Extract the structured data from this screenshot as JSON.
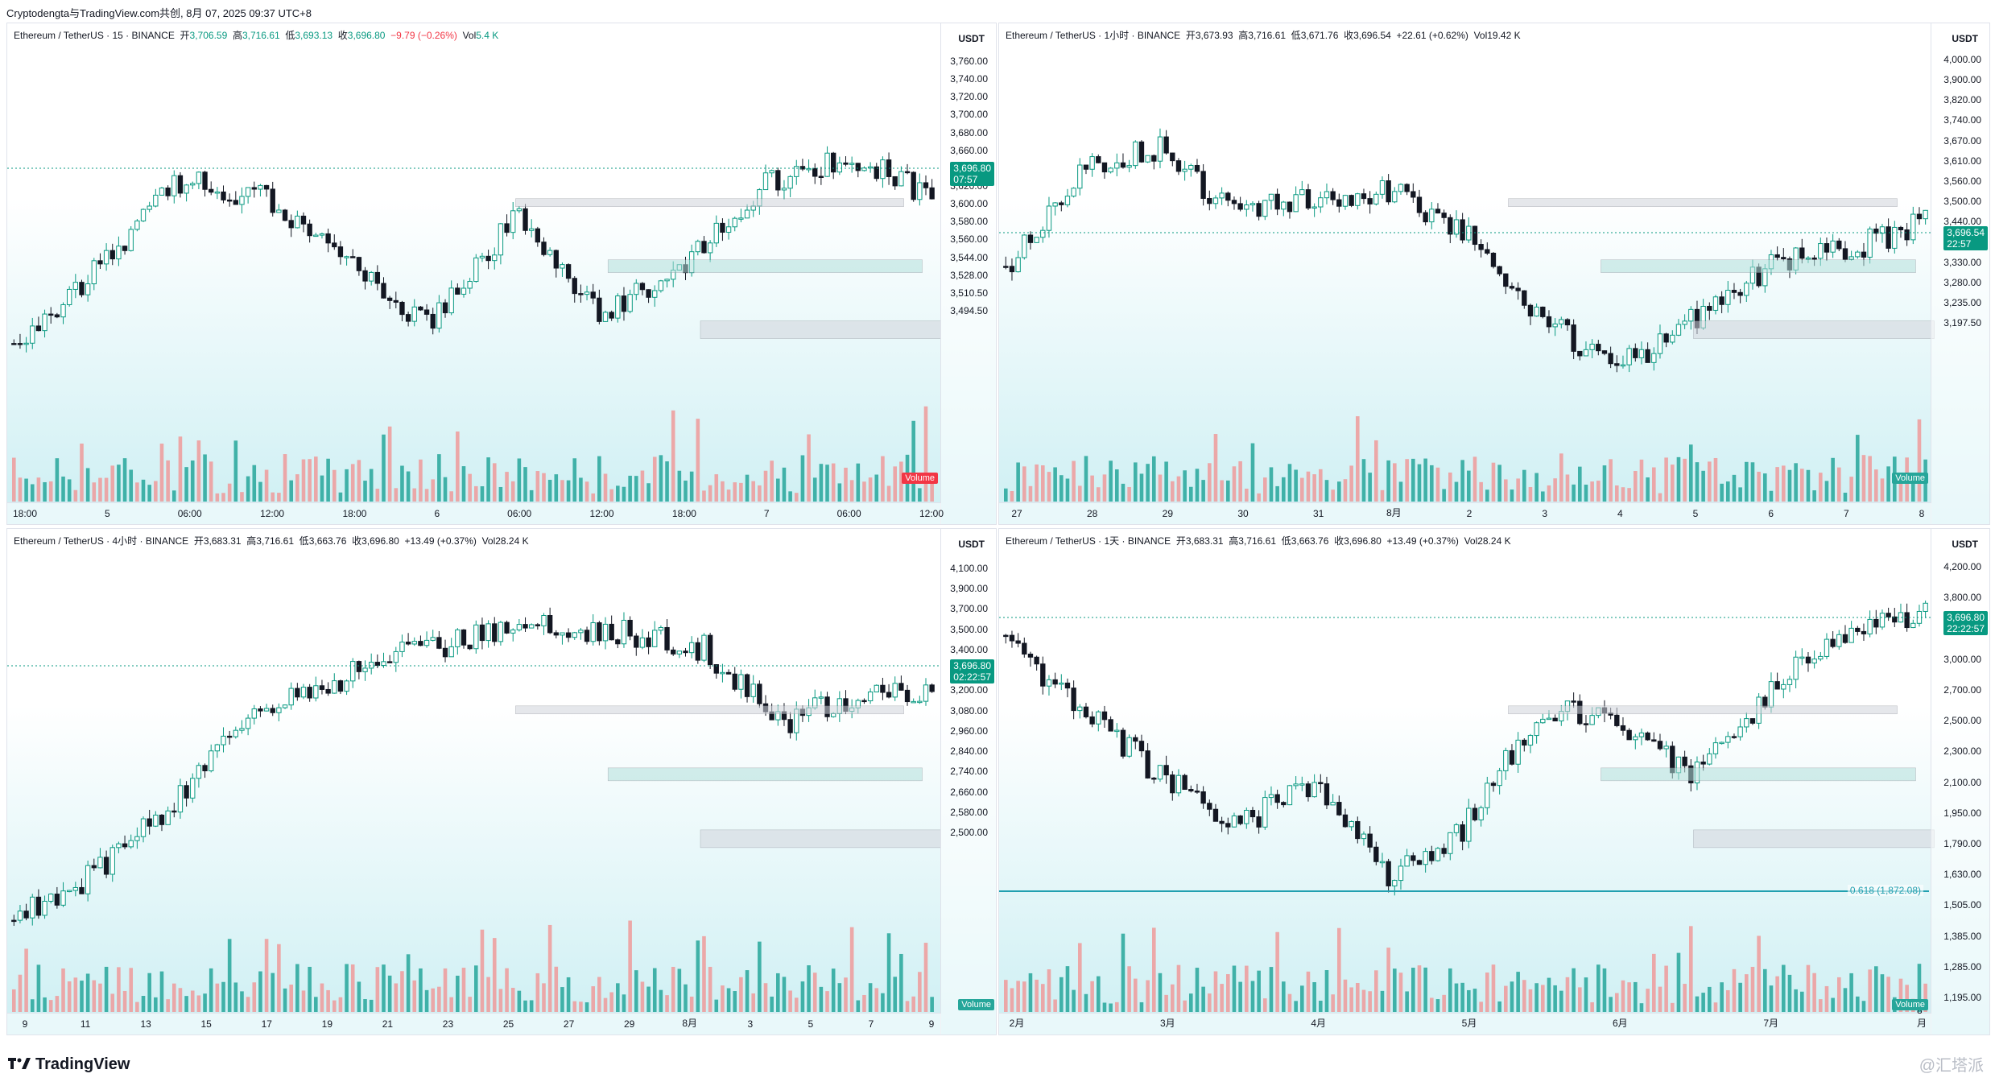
{
  "topbar": {
    "text": "Cryptodengta与TradingView.com共创, 8月 07, 2025 09:37 UTC+8"
  },
  "brand": {
    "logo": "TradingView",
    "watermark": "@汇塔派"
  },
  "colors": {
    "up": "#089981",
    "down": "#f23645",
    "volume_up": "#26a69a",
    "volume_down": "#ef9a9a"
  },
  "panels": [
    {
      "header": {
        "pair": "Ethereum / TetherUS · 15 · BINANCE",
        "open_label": "开",
        "open": "3,706.59",
        "high_label": "高",
        "high": "3,716.61",
        "low_label": "低",
        "low": "3,693.13",
        "close_label": "收",
        "close": "3,696.80",
        "change": "−9.79 (−0.26%)",
        "vol_label": "Vol",
        "vol": "5.4 K"
      },
      "unit": "USDT",
      "price_ticks": [
        "3,760.00",
        "3,740.00",
        "3,720.00",
        "3,700.00",
        "3,680.00",
        "3,660.00",
        "3,640.00",
        "3,620.00",
        "3,600.00",
        "3,580.00",
        "3,560.00",
        "3,544.00",
        "3,528.00",
        "3,510.50",
        "3,494.50"
      ],
      "price_label": {
        "value": "3,696.80",
        "countdown": "07:57"
      },
      "time_ticks": [
        "18:00",
        "5",
        "06:00",
        "12:00",
        "18:00",
        "6",
        "06:00",
        "12:00",
        "18:00",
        "7",
        "06:00",
        "12:00"
      ],
      "volume_label": "Volume"
    },
    {
      "header": {
        "pair": "Ethereum / TetherUS · 1小时 · BINANCE",
        "open_label": "开",
        "open": "3,673.93",
        "high_label": "高",
        "high": "3,716.61",
        "low_label": "低",
        "low": "3,671.76",
        "close_label": "收",
        "close": "3,696.54",
        "change": "+22.61 (+0.62%)",
        "vol_label": "Vol",
        "vol": "19.42 K"
      },
      "unit": "USDT",
      "price_ticks": [
        "4,000.00",
        "3,900.00",
        "3,820.00",
        "3,740.00",
        "3,670.00",
        "3,610.00",
        "3,560.00",
        "3,500.00",
        "3,440.00",
        "3,380.00",
        "3,330.00",
        "3,280.00",
        "3,235.00",
        "3,197.50"
      ],
      "price_label": {
        "value": "3,696.54",
        "countdown": "22:57"
      },
      "time_ticks": [
        "27",
        "28",
        "29",
        "30",
        "31",
        "8月",
        "2",
        "3",
        "4",
        "5",
        "6",
        "7",
        "8"
      ],
      "volume_label": "Volume"
    },
    {
      "header": {
        "pair": "Ethereum / TetherUS · 4小时 · BINANCE",
        "open_label": "开",
        "open": "3,683.31",
        "high_label": "高",
        "high": "3,716.61",
        "low_label": "低",
        "low": "3,663.76",
        "close_label": "收",
        "close": "3,696.80",
        "change": "+13.49 (+0.37%)",
        "vol_label": "Vol",
        "vol": "28.24 K"
      },
      "unit": "USDT",
      "price_ticks": [
        "4,100.00",
        "3,900.00",
        "3,700.00",
        "3,500.00",
        "3,400.00",
        "3,300.00",
        "3,200.00",
        "3,080.00",
        "2,960.00",
        "2,840.00",
        "2,740.00",
        "2,660.00",
        "2,580.00",
        "2,500.00"
      ],
      "price_label": {
        "value": "3,696.80",
        "countdown": "02:22:57"
      },
      "time_ticks": [
        "9",
        "11",
        "13",
        "15",
        "17",
        "19",
        "21",
        "23",
        "25",
        "27",
        "29",
        "8月",
        "3",
        "5",
        "7",
        "9"
      ],
      "volume_label": "Volume"
    },
    {
      "header": {
        "pair": "Ethereum / TetherUS · 1天 · BINANCE",
        "open_label": "开",
        "open": "3,683.31",
        "high_label": "高",
        "high": "3,716.61",
        "low_label": "低",
        "low": "3,663.76",
        "close_label": "收",
        "close": "3,696.80",
        "change": "+13.49 (+0.37%)",
        "vol_label": "Vol",
        "vol": "28.24 K"
      },
      "unit": "USDT",
      "price_ticks": [
        "4,200.00",
        "3,800.00",
        "3,400.00",
        "3,000.00",
        "2,700.00",
        "2,500.00",
        "2,300.00",
        "2,100.00",
        "1,950.00",
        "1,790.00",
        "1,630.00",
        "1,505.00",
        "1,385.00",
        "1,285.00",
        "1,195.00"
      ],
      "price_label": {
        "value": "3,696.80",
        "countdown": "22:22:57"
      },
      "time_ticks": [
        "2月",
        "3月",
        "4月",
        "5月",
        "6月",
        "7月",
        "8月"
      ],
      "fib_label": "0.618 (1,872.08)",
      "volume_label": "Volume"
    }
  ]
}
